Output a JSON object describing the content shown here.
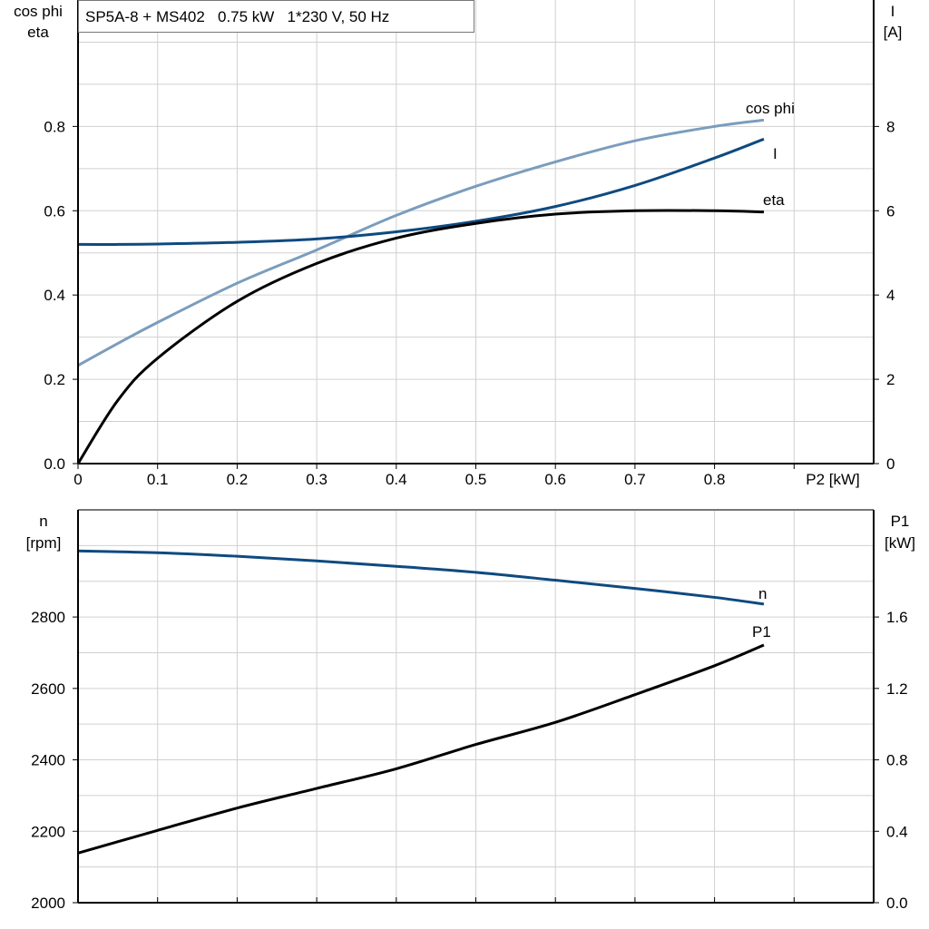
{
  "title": "SP5A-8 + MS402   0.75 kW   1*230 V, 50 Hz",
  "chart_data": [
    {
      "type": "line",
      "xlabel": "P2 [kW]",
      "xlim": [
        0,
        1.0
      ],
      "xticks": [
        "0",
        "0.1",
        "0.2",
        "0.3",
        "0.4",
        "0.5",
        "0.6",
        "0.7",
        "0.8"
      ],
      "ylabel_left": [
        "cos phi",
        "eta"
      ],
      "ylim_left": [
        0,
        1.1
      ],
      "yticks_left": [
        "0.0",
        "0.2",
        "0.4",
        "0.6",
        "0.8"
      ],
      "ylabel_right": [
        "I",
        "[A]"
      ],
      "ylim_right": [
        0,
        11
      ],
      "yticks_right": [
        "0",
        "2",
        "4",
        "6",
        "8"
      ],
      "grid": true,
      "x": [
        0,
        0.05,
        0.1,
        0.2,
        0.3,
        0.4,
        0.5,
        0.6,
        0.7,
        0.8,
        0.862
      ],
      "series": [
        {
          "name": "cos phi",
          "axis": "left",
          "color": "#7b9dbd",
          "values": [
            0.233,
            0.285,
            0.335,
            0.428,
            0.507,
            0.589,
            0.658,
            0.716,
            0.766,
            0.8,
            0.815
          ]
        },
        {
          "name": "I",
          "axis": "right",
          "color": "#0e4a80",
          "values": [
            5.2,
            5.2,
            5.21,
            5.25,
            5.33,
            5.5,
            5.75,
            6.1,
            6.6,
            7.25,
            7.7
          ]
        },
        {
          "name": "eta",
          "axis": "left",
          "color": "#000000",
          "values": [
            0,
            0.15,
            0.25,
            0.385,
            0.475,
            0.535,
            0.57,
            0.592,
            0.6,
            0.6,
            0.597
          ]
        }
      ]
    },
    {
      "type": "line",
      "xlim": [
        0,
        1.0
      ],
      "ylabel_left": [
        "n",
        "[rpm]"
      ],
      "ylim_left": [
        2000,
        3100
      ],
      "yticks_left": [
        "2000",
        "2200",
        "2400",
        "2600",
        "2800"
      ],
      "ylabel_right": [
        "P1",
        "[kW]"
      ],
      "ylim_right": [
        0,
        2.2
      ],
      "yticks_right": [
        "0.0",
        "0.4",
        "0.8",
        "1.2",
        "1.6"
      ],
      "grid": true,
      "x": [
        0,
        0.1,
        0.2,
        0.3,
        0.4,
        0.5,
        0.6,
        0.7,
        0.8,
        0.862
      ],
      "series": [
        {
          "name": "n",
          "axis": "left",
          "color": "#0e4a80",
          "values": [
            2985,
            2980,
            2970,
            2957,
            2942,
            2925,
            2903,
            2880,
            2855,
            2836
          ]
        },
        {
          "name": "P1",
          "axis": "right",
          "color": "#000000",
          "values": [
            0.278,
            0.405,
            0.53,
            0.64,
            0.75,
            0.886,
            1.01,
            1.165,
            1.327,
            1.443
          ]
        }
      ]
    }
  ]
}
